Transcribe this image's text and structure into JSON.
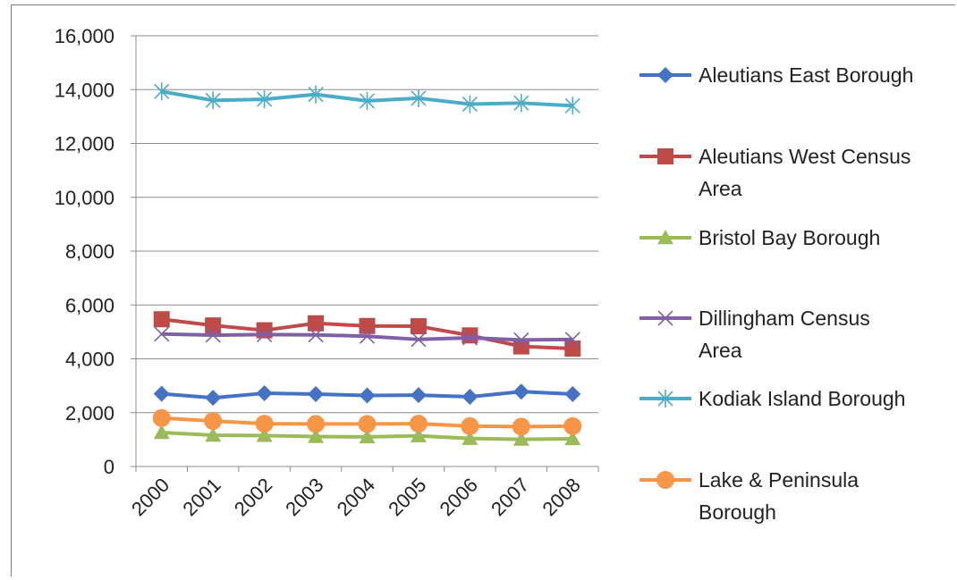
{
  "chart_data": {
    "type": "line",
    "title": "",
    "xlabel": "",
    "ylabel": "",
    "categories": [
      "2000",
      "2001",
      "2002",
      "2003",
      "2004",
      "2005",
      "2006",
      "2007",
      "2008"
    ],
    "ylim": [
      0,
      16000
    ],
    "y_ticks": [
      0,
      2000,
      4000,
      6000,
      8000,
      10000,
      12000,
      14000,
      16000
    ],
    "y_tick_labels": [
      "0",
      "2,000",
      "4,000",
      "6,000",
      "8,000",
      "10,000",
      "12,000",
      "14,000",
      "16,000"
    ],
    "grid": "horizontal",
    "legend_position": "right",
    "series": [
      {
        "name": "Aleutians East Borough",
        "legend_lines": [
          "Aleutians East Borough"
        ],
        "color": "#4472c4",
        "marker": "diamond",
        "values": [
          2700,
          2550,
          2720,
          2690,
          2640,
          2650,
          2590,
          2780,
          2690
        ]
      },
      {
        "name": "Aleutians West Census Area",
        "legend_lines": [
          "Aleutians West Census",
          "Area"
        ],
        "color": "#be4b48",
        "marker": "square",
        "values": [
          5470,
          5240,
          5060,
          5320,
          5220,
          5210,
          4870,
          4460,
          4380
        ]
      },
      {
        "name": "Bristol Bay Borough",
        "legend_lines": [
          "Bristol Bay Borough"
        ],
        "color": "#9bbb59",
        "marker": "triangle",
        "values": [
          1260,
          1160,
          1150,
          1110,
          1100,
          1140,
          1040,
          1010,
          1030
        ]
      },
      {
        "name": "Dillingham Census Area",
        "legend_lines": [
          "Dillingham Census",
          "Area"
        ],
        "color": "#7f5fa6",
        "marker": "x",
        "values": [
          4920,
          4880,
          4900,
          4890,
          4840,
          4720,
          4780,
          4700,
          4720
        ]
      },
      {
        "name": "Kodiak Island Borough",
        "legend_lines": [
          "Kodiak Island Borough"
        ],
        "color": "#4aacc6",
        "marker": "star",
        "values": [
          13930,
          13600,
          13640,
          13820,
          13580,
          13680,
          13460,
          13500,
          13400
        ]
      },
      {
        "name": "Lake & Peninsula Borough",
        "legend_lines": [
          "Lake & Peninsula",
          "Borough"
        ],
        "color": "#f79646",
        "marker": "circle",
        "values": [
          1800,
          1690,
          1590,
          1580,
          1580,
          1590,
          1500,
          1480,
          1500
        ]
      }
    ]
  }
}
